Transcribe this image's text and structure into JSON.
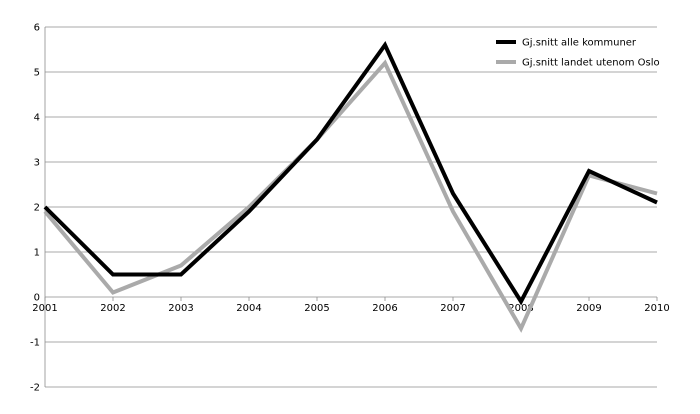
{
  "chart_data": {
    "type": "line",
    "title": "",
    "xlabel": "",
    "ylabel": "",
    "x": [
      "2001",
      "2002",
      "2003",
      "2004",
      "2005",
      "2006",
      "2007",
      "2008",
      "2009",
      "2010"
    ],
    "yticks": [
      "6",
      "5",
      "4",
      "3",
      "2",
      "1",
      "0",
      "-1",
      "-2"
    ],
    "ylim": [
      -2,
      6
    ],
    "grid": true,
    "legend_position": "top-right",
    "series": [
      {
        "name": "Gj.snitt alle kommuner",
        "color": "#000000",
        "values": [
          2.0,
          0.5,
          0.5,
          1.9,
          3.5,
          5.6,
          2.3,
          -0.1,
          2.8,
          2.1
        ]
      },
      {
        "name": "Gj.snitt landet utenom Oslo",
        "color": "#aaaaaa",
        "values": [
          1.9,
          0.1,
          0.7,
          2.0,
          3.5,
          5.2,
          1.9,
          -0.7,
          2.7,
          2.3
        ]
      }
    ]
  }
}
